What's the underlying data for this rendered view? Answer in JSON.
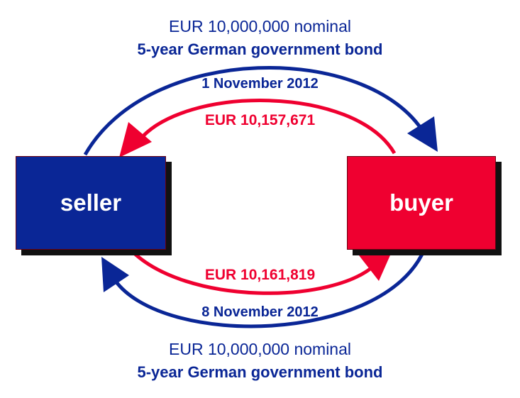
{
  "top_leg": {
    "nominal": "EUR 10,000,000 nominal",
    "bond": "5-year German government bond",
    "date": "1 November 2012",
    "cash": "EUR 10,157,671"
  },
  "bottom_leg": {
    "cash": "EUR 10,161,819",
    "date": "8 November 2012",
    "nominal": "EUR 10,000,000 nominal",
    "bond": "5-year German government bond"
  },
  "parties": {
    "seller": "seller",
    "buyer": "buyer"
  },
  "colors": {
    "blue": "#0a2696",
    "red": "#ef0030",
    "shadow": "#111111"
  }
}
